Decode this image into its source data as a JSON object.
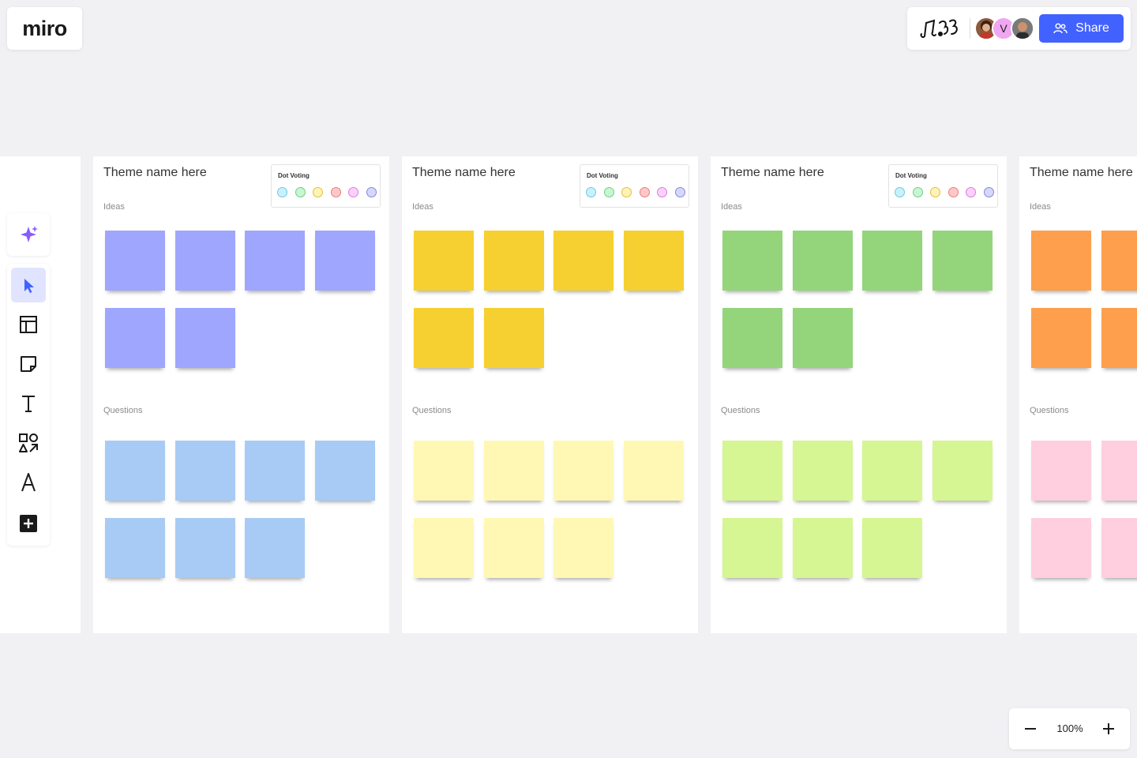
{
  "app": {
    "logo": "miro"
  },
  "header": {
    "collaborator_initial": "V",
    "share_label": "Share"
  },
  "colors": {
    "accent": "#4262ff",
    "purple": "#9ea7fd",
    "blue": "#a7cbf4",
    "yellow": "#f6d030",
    "light_yellow": "#fff8b4",
    "green": "#94d57b",
    "light_green": "#d5f692",
    "orange": "#fd9f4d",
    "pink": "#ffcfe0"
  },
  "dot_voting": {
    "title": "Dot Voting",
    "dots": [
      {
        "fill": "#c9f1fb",
        "stroke": "#72c8e0"
      },
      {
        "fill": "#c9f5d2",
        "stroke": "#6fd08a"
      },
      {
        "fill": "#fff3b5",
        "stroke": "#e0c043"
      },
      {
        "fill": "#ffc8c8",
        "stroke": "#e87c7c"
      },
      {
        "fill": "#fbd1fb",
        "stroke": "#dd7ae0"
      },
      {
        "fill": "#d6d8fb",
        "stroke": "#8486e0"
      }
    ]
  },
  "themes": [
    {
      "title": "Theme name here",
      "ideas_label": "Ideas",
      "questions_label": "Questions",
      "idea_color": "#9ea7fd",
      "question_color": "#a7cbf4",
      "idea_count": 6,
      "question_count": 7
    },
    {
      "title": "Theme name here",
      "ideas_label": "Ideas",
      "questions_label": "Questions",
      "idea_color": "#f6d030",
      "question_color": "#fff8b4",
      "idea_count": 6,
      "question_count": 7
    },
    {
      "title": "Theme name here",
      "ideas_label": "Ideas",
      "questions_label": "Questions",
      "idea_color": "#94d57b",
      "question_color": "#d5f692",
      "idea_count": 6,
      "question_count": 7
    },
    {
      "title": "Theme name here",
      "ideas_label": "Ideas",
      "questions_label": "Questions",
      "idea_color": "#fd9f4d",
      "question_color": "#ffcfe0",
      "idea_count": 4,
      "question_count": 4
    }
  ],
  "toolbar": {
    "tools": [
      "ai-sparkle",
      "select",
      "templates",
      "sticky-note",
      "text",
      "shapes",
      "pen",
      "add"
    ]
  },
  "zoom": {
    "value": "100%"
  }
}
